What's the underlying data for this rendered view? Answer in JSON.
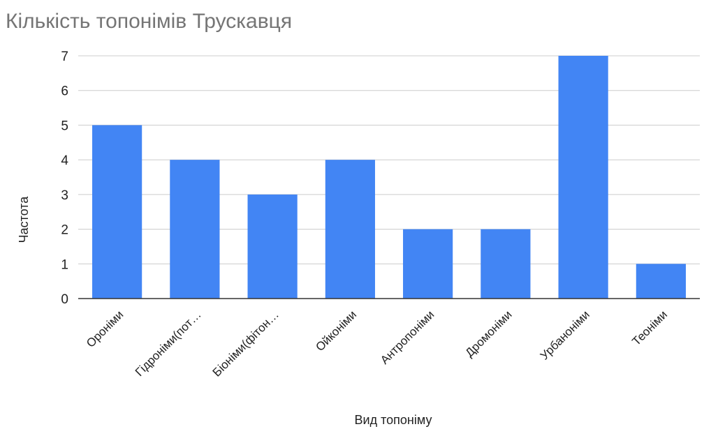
{
  "chart_data": {
    "type": "bar",
    "title": "Кількість топонімів Трускавця",
    "xlabel": "Вид топоніму",
    "ylabel": "Частота",
    "categories": [
      "Ороніми",
      "Гідроніми(пот…",
      "Біоніми(фітон…",
      "Ойконіми",
      "Антропоніми",
      "Дромоніми",
      "Урбаноніми",
      "Теоніми"
    ],
    "values": [
      5,
      4,
      3,
      4,
      2,
      2,
      7,
      1
    ],
    "ylim": [
      0,
      7
    ],
    "yticks": [
      0,
      1,
      2,
      3,
      4,
      5,
      6,
      7
    ],
    "grid": true,
    "legend": "none",
    "bar_color": "#4285F4",
    "grid_color": "#cccccc",
    "axis_color": "#333333"
  }
}
